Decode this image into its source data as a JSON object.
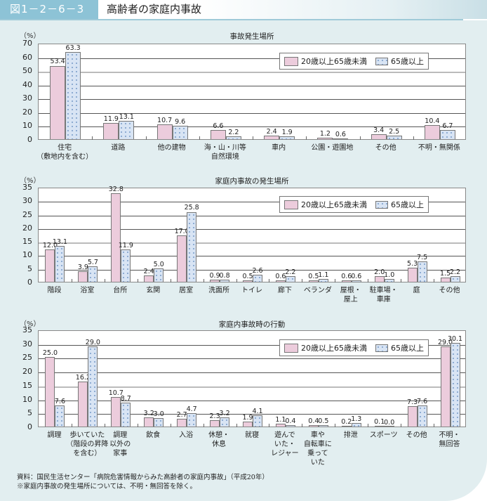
{
  "header": {
    "figure_number": "図1－2－6－3",
    "title": "高齢者の家庭内事故"
  },
  "colors": {
    "series_a": "#ecccdc",
    "series_b": "#d8e4f4",
    "panel_bg": "#e2eef0",
    "header_accent": "#8dc3d6"
  },
  "legend": {
    "series_a": "20歳以上65歳未満",
    "series_b": "65歳以上"
  },
  "notes": {
    "source": "資料：国民生活センター「病院危害情報からみた高齢者の家庭内事故」（平成20年）",
    "footnote": "※家庭内事故の発生場所については、不明・無回答を除く。"
  },
  "chart_data": [
    {
      "type": "bar",
      "title": "事故発生場所",
      "ylabel": "（%）",
      "ylim": [
        0,
        70
      ],
      "yticks": [
        0,
        10,
        20,
        30,
        40,
        50,
        60,
        70
      ],
      "legend_position": "top-right",
      "categories": [
        "住宅\n（敷地内を含む）",
        "道路",
        "他の建物",
        "海・山・川等\n自然環境",
        "車内",
        "公園・遊園地",
        "その他",
        "不明・無関係"
      ],
      "series": [
        {
          "name": "20歳以上65歳未満",
          "values": [
            53.4,
            11.9,
            10.7,
            6.6,
            2.4,
            1.2,
            3.4,
            10.4
          ]
        },
        {
          "name": "65歳以上",
          "values": [
            63.3,
            13.1,
            9.6,
            2.2,
            1.9,
            0.6,
            2.5,
            6.7
          ]
        }
      ]
    },
    {
      "type": "bar",
      "title": "家庭内事故の発生場所",
      "ylabel": "（%）",
      "ylim": [
        0,
        35
      ],
      "yticks": [
        0,
        5,
        10,
        15,
        20,
        25,
        30,
        35
      ],
      "legend_position": "top-right",
      "categories": [
        "階段",
        "浴室",
        "台所",
        "玄関",
        "居室",
        "洗面所",
        "トイレ",
        "廊下",
        "ベランダ",
        "屋根・\n屋上",
        "駐車場・\n車庫",
        "庭",
        "その他"
      ],
      "series": [
        {
          "name": "20歳以上65歳未満",
          "values": [
            12.0,
            3.9,
            32.8,
            2.4,
            17.0,
            0.9,
            0.5,
            0.6,
            0.5,
            0.6,
            2.0,
            5.3,
            1.5
          ]
        },
        {
          "name": "65歳以上",
          "values": [
            13.1,
            5.7,
            11.9,
            5.0,
            25.8,
            0.8,
            2.6,
            2.2,
            1.1,
            0.6,
            1.0,
            7.5,
            2.2
          ]
        }
      ]
    },
    {
      "type": "bar",
      "title": "家庭内事故時の行動",
      "ylabel": "（%）",
      "ylim": [
        0,
        35
      ],
      "yticks": [
        0,
        5,
        10,
        15,
        20,
        25,
        30,
        35
      ],
      "legend_position": "top-right",
      "categories": [
        "調理",
        "歩いていた\n（階段の昇降\nを含む）",
        "調理\n以外の\n家事",
        "飲食",
        "入浴",
        "休憩・\n休息",
        "就寝",
        "遊んで\nいた・\nレジャー",
        "車や\n自転車に\n乗って\nいた",
        "排泄",
        "スポーツ",
        "その他",
        "不明・\n無回答"
      ],
      "series": [
        {
          "name": "20歳以上65歳未満",
          "values": [
            25.0,
            16.2,
            10.7,
            3.2,
            2.7,
            2.3,
            1.9,
            1.1,
            0.4,
            0.2,
            0.1,
            7.3,
            29.0
          ]
        },
        {
          "name": "65歳以上",
          "values": [
            7.6,
            29.0,
            8.7,
            3.0,
            4.7,
            3.2,
            4.1,
            0.4,
            0.5,
            1.3,
            0.0,
            7.6,
            30.1
          ]
        }
      ]
    }
  ]
}
